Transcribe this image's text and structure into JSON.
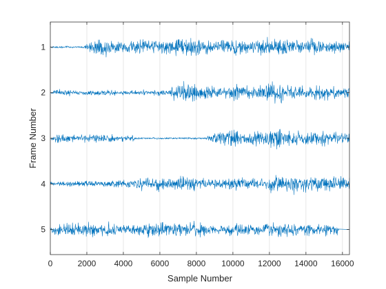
{
  "chart_data": {
    "type": "line",
    "title": "",
    "xlabel": "Sample Number",
    "ylabel": "Frame Number",
    "xlim": [
      0,
      16384
    ],
    "ylim": [
      0.45,
      5.55
    ],
    "y_reversed": true,
    "grid_x": true,
    "grid_y": false,
    "line_color": "#0072BD",
    "xticks": [
      0,
      2000,
      4000,
      6000,
      8000,
      10000,
      12000,
      14000,
      16000
    ],
    "xtick_labels": [
      "0",
      "2000",
      "4000",
      "6000",
      "8000",
      "10000",
      "12000",
      "14000",
      "16000"
    ],
    "yticks": [
      1,
      2,
      3,
      4,
      5
    ],
    "ytick_labels": [
      "1",
      "2",
      "3",
      "4",
      "5"
    ],
    "series": [
      {
        "frame": 1,
        "bursts": [
          [
            1900,
            16384,
            0.3
          ]
        ],
        "quiet_amp": 0.035,
        "end_sample": 16384
      },
      {
        "frame": 2,
        "bursts": [
          [
            0,
            6500,
            0.1
          ],
          [
            6500,
            16384,
            0.3
          ]
        ],
        "quiet_amp": 0.03,
        "end_sample": 16384
      },
      {
        "frame": 3,
        "bursts": [
          [
            0,
            4600,
            0.15
          ],
          [
            8600,
            16384,
            0.3
          ]
        ],
        "quiet_amp": 0.03,
        "end_sample": 16384
      },
      {
        "frame": 4,
        "bursts": [
          [
            3300,
            16384,
            0.24
          ],
          [
            12800,
            16384,
            0.32
          ]
        ],
        "quiet_amp": 0.08,
        "end_sample": 16384
      },
      {
        "frame": 5,
        "bursts": [
          [
            0,
            15800,
            0.24
          ]
        ],
        "quiet_amp": 0.1,
        "end_sample": 15800
      }
    ]
  }
}
